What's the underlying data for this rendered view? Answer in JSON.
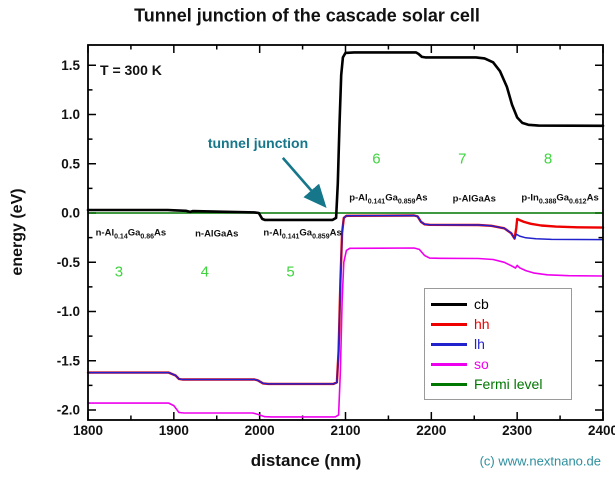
{
  "title": "Tunnel junction of the cascade solar cell",
  "annotations": {
    "temperature": "T = 300 K",
    "tunnel_junction": "tunnel junction",
    "copyright": "(c) www.nextnano.de"
  },
  "colors": {
    "cb": "#000000",
    "hh": "#ee0000",
    "lh": "#2222cc",
    "so": "#ee00ee",
    "fermi": "#007700",
    "annotation_teal": "#16768a",
    "copyright_teal": "#2e8f9e",
    "region_green": "#3fd43f",
    "axis": "#000000"
  },
  "chart_data": {
    "type": "line",
    "title": "Tunnel junction of the cascade solar cell",
    "xlabel": "distance (nm)",
    "ylabel": "energy (eV)",
    "xlim": [
      1800,
      2400
    ],
    "ylim": [
      -2.11,
      1.7
    ],
    "grid": false,
    "legend_position": "lower right",
    "x_major_ticks": [
      1800,
      1900,
      2000,
      2100,
      2200,
      2300,
      2400
    ],
    "x_minor_ticks": [
      1850,
      1950,
      2050,
      2150,
      2250,
      2350
    ],
    "y_major_ticks": [
      1.5,
      1.0,
      0.5,
      0.0,
      -0.5,
      -1.0,
      -1.5,
      -2.0
    ],
    "y_minor_ticks": [
      1.25,
      0.75,
      0.25,
      -0.25,
      -0.75,
      -1.25,
      -1.75
    ],
    "draw_order": [
      "hh",
      "lh",
      "so",
      "Fermi level",
      "cb"
    ],
    "series": [
      {
        "name": "cb",
        "color": "#000000",
        "width": 2.6,
        "points": [
          [
            1800,
            0.03
          ],
          [
            1893,
            0.03
          ],
          [
            1900,
            0.027
          ],
          [
            1914,
            0.022
          ],
          [
            1919,
            0.011
          ],
          [
            1922,
            0.019
          ],
          [
            1960,
            0.012
          ],
          [
            1994,
            0.006
          ],
          [
            1999,
            0.0
          ],
          [
            2003,
            -0.06
          ],
          [
            2006,
            -0.07
          ],
          [
            2085,
            -0.07
          ],
          [
            2089,
            -0.05
          ],
          [
            2091,
            0.3
          ],
          [
            2093,
            0.9
          ],
          [
            2095,
            1.4
          ],
          [
            2097,
            1.58
          ],
          [
            2100,
            1.625
          ],
          [
            2110,
            1.63
          ],
          [
            2182,
            1.63
          ],
          [
            2185,
            1.615
          ],
          [
            2189,
            1.585
          ],
          [
            2193,
            1.58
          ],
          [
            2252,
            1.58
          ],
          [
            2262,
            1.57
          ],
          [
            2272,
            1.53
          ],
          [
            2280,
            1.44
          ],
          [
            2288,
            1.28
          ],
          [
            2294,
            1.1
          ],
          [
            2300,
            0.97
          ],
          [
            2306,
            0.915
          ],
          [
            2313,
            0.895
          ],
          [
            2325,
            0.887
          ],
          [
            2400,
            0.885
          ]
        ]
      },
      {
        "name": "hh",
        "color": "#ee0000",
        "width": 2.4,
        "points": [
          [
            1800,
            -1.62
          ],
          [
            1894,
            -1.62
          ],
          [
            1902,
            -1.65
          ],
          [
            1906,
            -1.685
          ],
          [
            1910,
            -1.69
          ],
          [
            1994,
            -1.69
          ],
          [
            1998,
            -1.7
          ],
          [
            2004,
            -1.73
          ],
          [
            2010,
            -1.735
          ],
          [
            2086,
            -1.735
          ],
          [
            2090,
            -1.72
          ],
          [
            2092,
            -1.4
          ],
          [
            2094,
            -0.7
          ],
          [
            2096,
            -0.2
          ],
          [
            2098,
            -0.05
          ],
          [
            2101,
            -0.028
          ],
          [
            2180,
            -0.025
          ],
          [
            2184,
            -0.035
          ],
          [
            2188,
            -0.09
          ],
          [
            2192,
            -0.115
          ],
          [
            2198,
            -0.12
          ],
          [
            2255,
            -0.122
          ],
          [
            2270,
            -0.13
          ],
          [
            2285,
            -0.155
          ],
          [
            2293,
            -0.205
          ],
          [
            2297,
            -0.26
          ],
          [
            2299,
            -0.15
          ],
          [
            2300,
            -0.06
          ],
          [
            2303,
            -0.072
          ],
          [
            2308,
            -0.09
          ],
          [
            2316,
            -0.11
          ],
          [
            2328,
            -0.127
          ],
          [
            2345,
            -0.138
          ],
          [
            2370,
            -0.145
          ],
          [
            2400,
            -0.148
          ]
        ]
      },
      {
        "name": "lh",
        "color": "#2222cc",
        "width": 1.5,
        "points": [
          [
            1800,
            -1.62
          ],
          [
            1894,
            -1.62
          ],
          [
            1902,
            -1.65
          ],
          [
            1906,
            -1.685
          ],
          [
            1910,
            -1.69
          ],
          [
            1994,
            -1.69
          ],
          [
            1998,
            -1.7
          ],
          [
            2004,
            -1.73
          ],
          [
            2010,
            -1.735
          ],
          [
            2086,
            -1.735
          ],
          [
            2090,
            -1.72
          ],
          [
            2092,
            -1.4
          ],
          [
            2094,
            -0.7
          ],
          [
            2096,
            -0.2
          ],
          [
            2098,
            -0.05
          ],
          [
            2101,
            -0.028
          ],
          [
            2180,
            -0.025
          ],
          [
            2184,
            -0.035
          ],
          [
            2188,
            -0.09
          ],
          [
            2192,
            -0.115
          ],
          [
            2198,
            -0.12
          ],
          [
            2255,
            -0.122
          ],
          [
            2270,
            -0.13
          ],
          [
            2285,
            -0.155
          ],
          [
            2293,
            -0.205
          ],
          [
            2297,
            -0.26
          ],
          [
            2299,
            -0.215
          ],
          [
            2303,
            -0.235
          ],
          [
            2310,
            -0.252
          ],
          [
            2322,
            -0.262
          ],
          [
            2340,
            -0.268
          ],
          [
            2400,
            -0.27
          ]
        ]
      },
      {
        "name": "so",
        "color": "#ee00ee",
        "width": 1.6,
        "points": [
          [
            1800,
            -1.93
          ],
          [
            1894,
            -1.93
          ],
          [
            1900,
            -1.955
          ],
          [
            1906,
            -2.025
          ],
          [
            1912,
            -2.03
          ],
          [
            1992,
            -2.03
          ],
          [
            1998,
            -2.045
          ],
          [
            2006,
            -2.068
          ],
          [
            2014,
            -2.07
          ],
          [
            2088,
            -2.07
          ],
          [
            2092,
            -2.05
          ],
          [
            2094,
            -1.6
          ],
          [
            2096,
            -0.9
          ],
          [
            2098,
            -0.5
          ],
          [
            2101,
            -0.38
          ],
          [
            2105,
            -0.358
          ],
          [
            2180,
            -0.355
          ],
          [
            2186,
            -0.37
          ],
          [
            2192,
            -0.43
          ],
          [
            2198,
            -0.458
          ],
          [
            2210,
            -0.46
          ],
          [
            2255,
            -0.462
          ],
          [
            2272,
            -0.472
          ],
          [
            2285,
            -0.5
          ],
          [
            2293,
            -0.535
          ],
          [
            2298,
            -0.558
          ],
          [
            2300,
            -0.532
          ],
          [
            2303,
            -0.556
          ],
          [
            2310,
            -0.585
          ],
          [
            2320,
            -0.61
          ],
          [
            2335,
            -0.627
          ],
          [
            2360,
            -0.637
          ],
          [
            2400,
            -0.64
          ]
        ]
      },
      {
        "name": "Fermi level",
        "color": "#007700",
        "width": 1.4,
        "points": [
          [
            1800,
            0.0
          ],
          [
            2400,
            0.0
          ]
        ]
      }
    ],
    "legend": [
      {
        "label": "cb",
        "color": "#000000"
      },
      {
        "label": "hh",
        "color": "#ee0000"
      },
      {
        "label": "lh",
        "color": "#2222cc"
      },
      {
        "label": "so",
        "color": "#ee00ee"
      },
      {
        "label": "Fermi level",
        "color": "#007700"
      }
    ],
    "regions": [
      {
        "number": "3",
        "x_start": 1800,
        "x_end": 1900,
        "num_y_ev": -0.6,
        "label_y_ev": -0.21,
        "label_parts": [
          {
            "t": "n-Al"
          },
          {
            "t": "0.14",
            "sub": true
          },
          {
            "t": "Ga"
          },
          {
            "t": "0.86",
            "sub": true
          },
          {
            "t": "As"
          }
        ]
      },
      {
        "number": "4",
        "x_start": 1900,
        "x_end": 2000,
        "num_y_ev": -0.6,
        "label_y_ev": -0.21,
        "label_parts": [
          {
            "t": "n-AlGaAs"
          }
        ]
      },
      {
        "number": "5",
        "x_start": 2000,
        "x_end": 2100,
        "num_y_ev": -0.6,
        "label_y_ev": -0.21,
        "label_parts": [
          {
            "t": "n-Al"
          },
          {
            "t": "0.141",
            "sub": true
          },
          {
            "t": "Ga"
          },
          {
            "t": "0.859",
            "sub": true
          },
          {
            "t": "As"
          }
        ]
      },
      {
        "number": "6",
        "x_start": 2100,
        "x_end": 2200,
        "num_y_ev": 0.55,
        "label_y_ev": 0.14,
        "label_parts": [
          {
            "t": "p-Al"
          },
          {
            "t": "0.141",
            "sub": true
          },
          {
            "t": "Ga"
          },
          {
            "t": "0.859",
            "sub": true
          },
          {
            "t": "As"
          }
        ]
      },
      {
        "number": "7",
        "x_start": 2200,
        "x_end": 2300,
        "num_y_ev": 0.55,
        "label_y_ev": 0.14,
        "label_parts": [
          {
            "t": "p-AlGaAs"
          }
        ]
      },
      {
        "number": "8",
        "x_start": 2300,
        "x_end": 2400,
        "num_y_ev": 0.55,
        "label_y_ev": 0.14,
        "label_parts": [
          {
            "t": "p-In"
          },
          {
            "t": "0.388",
            "sub": true
          },
          {
            "t": "Ga"
          },
          {
            "t": "0.612",
            "sub": true
          },
          {
            "t": "As"
          }
        ]
      }
    ],
    "tunnel_junction_arrow": {
      "x1_nm": 2027,
      "y1_ev": 0.56,
      "x2_nm": 2074,
      "y2_ev": 0.09
    }
  }
}
